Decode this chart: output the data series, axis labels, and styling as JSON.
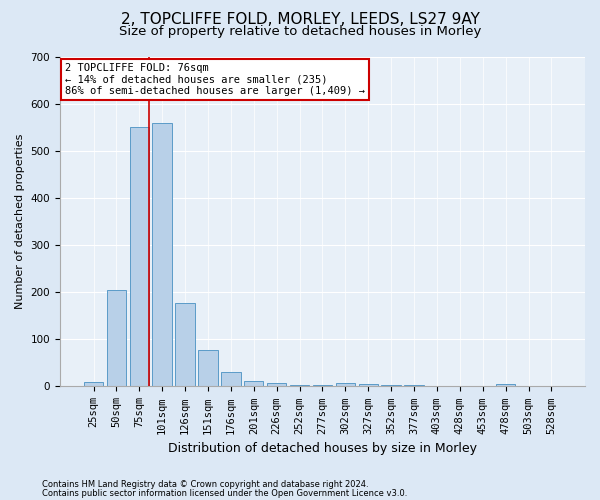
{
  "title1": "2, TOPCLIFFE FOLD, MORLEY, LEEDS, LS27 9AY",
  "title2": "Size of property relative to detached houses in Morley",
  "xlabel": "Distribution of detached houses by size in Morley",
  "ylabel": "Number of detached properties",
  "footnote1": "Contains HM Land Registry data © Crown copyright and database right 2024.",
  "footnote2": "Contains public sector information licensed under the Open Government Licence v3.0.",
  "bar_labels": [
    "25sqm",
    "50sqm",
    "75sqm",
    "101sqm",
    "126sqm",
    "151sqm",
    "176sqm",
    "201sqm",
    "226sqm",
    "252sqm",
    "277sqm",
    "302sqm",
    "327sqm",
    "352sqm",
    "377sqm",
    "403sqm",
    "428sqm",
    "453sqm",
    "478sqm",
    "503sqm",
    "528sqm"
  ],
  "bar_values": [
    10,
    205,
    550,
    558,
    178,
    78,
    30,
    12,
    8,
    4,
    3,
    8,
    5,
    4,
    4,
    0,
    0,
    0,
    6,
    0,
    0
  ],
  "bar_color": "#b8d0e8",
  "bar_edge_color": "#5b9bc8",
  "annotation_text": "2 TOPCLIFFE FOLD: 76sqm\n← 14% of detached houses are smaller (235)\n86% of semi-detached houses are larger (1,409) →",
  "annotation_box_color": "#ffffff",
  "annotation_box_edge_color": "#cc0000",
  "vline_color": "#cc0000",
  "ylim": [
    0,
    700
  ],
  "yticks": [
    0,
    100,
    200,
    300,
    400,
    500,
    600,
    700
  ],
  "bg_color": "#dce8f5",
  "plot_bg_color": "#e8f0f8",
  "title1_fontsize": 11,
  "title2_fontsize": 9.5,
  "xlabel_fontsize": 9,
  "ylabel_fontsize": 8,
  "tick_fontsize": 7.5,
  "annot_fontsize": 7.5,
  "footnote_fontsize": 6
}
